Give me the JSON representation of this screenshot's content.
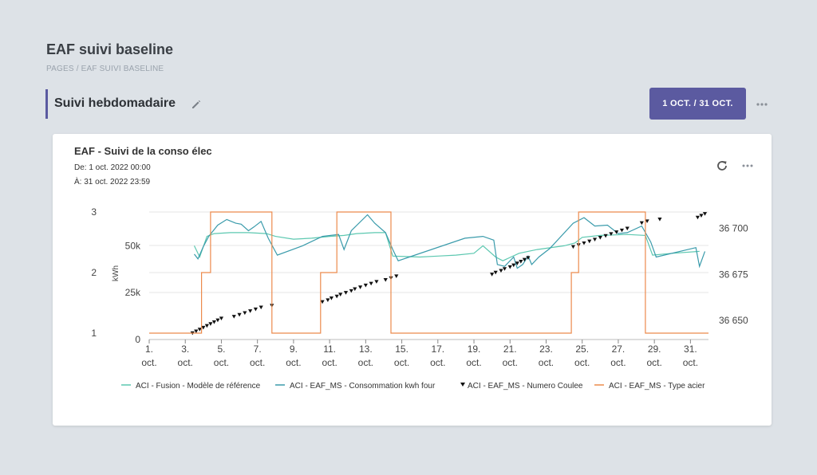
{
  "page": {
    "title": "EAF suivi baseline",
    "breadcrumb": "PAGES / EAF SUIVI BASELINE"
  },
  "section": {
    "title": "Suivi hebdomadaire",
    "date_range_button": "1 OCT. / 31 OCT."
  },
  "card": {
    "title": "EAF - Suivi de la conso élec",
    "from": "De: 1 oct. 2022 00:00",
    "to": "À: 31 oct. 2022 23:59"
  },
  "stray_mark": "'",
  "icons": {
    "edit": "pencil-icon",
    "more": "more-horizontal-icon",
    "refresh": "refresh-icon"
  },
  "colors": {
    "accent": "#5b5aa0",
    "fusion": "#5cc8b0",
    "conso": "#3a9bab",
    "coulee": "#111111",
    "type_acier": "#ec8a4c"
  },
  "chart_data": {
    "type": "line",
    "x_range": [
      1,
      32
    ],
    "x_ticks": [
      {
        "day": 1,
        "label": "1."
      },
      {
        "day": 3,
        "label": "3."
      },
      {
        "day": 5,
        "label": "5."
      },
      {
        "day": 7,
        "label": "7."
      },
      {
        "day": 9,
        "label": "9."
      },
      {
        "day": 11,
        "label": "11."
      },
      {
        "day": 13,
        "label": "13."
      },
      {
        "day": 15,
        "label": "15."
      },
      {
        "day": 17,
        "label": "17."
      },
      {
        "day": 19,
        "label": "19."
      },
      {
        "day": 21,
        "label": "21."
      },
      {
        "day": 23,
        "label": "23."
      },
      {
        "day": 25,
        "label": "25."
      },
      {
        "day": 27,
        "label": "27."
      },
      {
        "day": 29,
        "label": "29."
      },
      {
        "day": 31,
        "label": "31."
      }
    ],
    "x_tick_suffix": "oct.",
    "axes": {
      "type_axis": {
        "ticks": [
          1,
          2,
          3
        ],
        "range": [
          1,
          3
        ]
      },
      "kwh_axis": {
        "label": "kWh",
        "ticks": [
          {
            "value": 0,
            "label": "0"
          },
          {
            "value": 25000,
            "label": "25k"
          },
          {
            "value": 50000,
            "label": "50k"
          }
        ],
        "range": [
          0,
          68000
        ]
      },
      "coulee_axis": {
        "ticks": [
          {
            "value": 36650,
            "label": "36 650"
          },
          {
            "value": 36675,
            "label": "36 675"
          },
          {
            "value": 36700,
            "label": "36 700"
          }
        ],
        "range": [
          36643,
          36709
        ]
      }
    },
    "grid": true,
    "legend_position": "bottom",
    "series": [
      {
        "name": "ACI - Fusion - Modèle de référence",
        "axis": "kwh",
        "points": [
          [
            3.5,
            50000
          ],
          [
            3.8,
            44000
          ],
          [
            4.2,
            55000
          ],
          [
            4.6,
            56500
          ],
          [
            5.5,
            57000
          ],
          [
            6.5,
            57000
          ],
          [
            7.5,
            56500
          ],
          [
            8,
            55000
          ],
          [
            9,
            53500
          ],
          [
            10,
            54000
          ],
          [
            11,
            55000
          ],
          [
            11.8,
            55500
          ],
          [
            12.5,
            56500
          ],
          [
            13.5,
            57000
          ],
          [
            14.1,
            57000
          ],
          [
            14.5,
            44500
          ],
          [
            16,
            44000
          ],
          [
            17,
            44500
          ],
          [
            18,
            45000
          ],
          [
            19,
            46000
          ],
          [
            19.5,
            50000
          ],
          [
            20.2,
            44000
          ],
          [
            20.6,
            42000
          ],
          [
            21.5,
            46000
          ],
          [
            22.5,
            48000
          ],
          [
            24,
            50000
          ],
          [
            24.6,
            51500
          ],
          [
            25,
            54500
          ],
          [
            26,
            55500
          ],
          [
            27.5,
            56000
          ],
          [
            28.5,
            55500
          ],
          [
            28.9,
            45000
          ],
          [
            30,
            46000
          ],
          [
            31.5,
            47000
          ]
        ]
      },
      {
        "name": "ACI - EAF_MS - Consommation kwh four",
        "axis": "kwh",
        "points": [
          [
            3.5,
            45500
          ],
          [
            3.7,
            43000
          ],
          [
            4,
            49500
          ],
          [
            4.3,
            55000
          ],
          [
            4.8,
            61000
          ],
          [
            5.3,
            64000
          ],
          [
            5.8,
            62000
          ],
          [
            6.1,
            61500
          ],
          [
            6.5,
            58000
          ],
          [
            6.8,
            60000
          ],
          [
            7.2,
            63000
          ],
          [
            7.6,
            54000
          ],
          [
            8.1,
            45000
          ],
          [
            9.5,
            50000
          ],
          [
            10.6,
            55000
          ],
          [
            11.5,
            56000
          ],
          [
            11.8,
            48000
          ],
          [
            12.2,
            58000
          ],
          [
            13.1,
            66500
          ],
          [
            13.5,
            62000
          ],
          [
            14.1,
            57000
          ],
          [
            14.5,
            48000
          ],
          [
            14.8,
            42000
          ],
          [
            18.5,
            54000
          ],
          [
            19.5,
            55000
          ],
          [
            20.1,
            53000
          ],
          [
            20.3,
            40000
          ],
          [
            20.7,
            39000
          ],
          [
            21.2,
            44000
          ],
          [
            21.4,
            38000
          ],
          [
            21.7,
            40000
          ],
          [
            22,
            44500
          ],
          [
            22.2,
            40000
          ],
          [
            22.6,
            44000
          ],
          [
            23.2,
            48500
          ],
          [
            24.5,
            62000
          ],
          [
            25.1,
            65000
          ],
          [
            25.7,
            60500
          ],
          [
            26.4,
            61000
          ],
          [
            27,
            56500
          ],
          [
            27.5,
            57000
          ],
          [
            28.3,
            60500
          ],
          [
            28.8,
            52000
          ],
          [
            29.1,
            44000
          ],
          [
            31.3,
            49000
          ],
          [
            31.5,
            39000
          ],
          [
            31.8,
            47000
          ]
        ]
      },
      {
        "name": "ACI - EAF_MS - Numero Coulee",
        "axis": "coulee",
        "markers": "triangle-down",
        "points": [
          [
            3.4,
            36643
          ],
          [
            3.6,
            36644
          ],
          [
            3.8,
            36645
          ],
          [
            4,
            36646
          ],
          [
            4.2,
            36647
          ],
          [
            4.4,
            36648
          ],
          [
            4.6,
            36649
          ],
          [
            4.8,
            36650
          ],
          [
            5,
            36651
          ],
          [
            5.7,
            36652
          ],
          [
            6,
            36653
          ],
          [
            6.3,
            36654
          ],
          [
            6.6,
            36655
          ],
          [
            6.9,
            36656
          ],
          [
            7.2,
            36657
          ],
          [
            7.8,
            36658
          ],
          [
            10.6,
            36660
          ],
          [
            10.9,
            36661
          ],
          [
            11.1,
            36662
          ],
          [
            11.4,
            36663
          ],
          [
            11.6,
            36664
          ],
          [
            11.9,
            36665
          ],
          [
            12.2,
            36666
          ],
          [
            12.4,
            36667
          ],
          [
            12.7,
            36668
          ],
          [
            13,
            36669
          ],
          [
            13.3,
            36670
          ],
          [
            13.6,
            36671
          ],
          [
            14.1,
            36672
          ],
          [
            14.4,
            36673
          ],
          [
            14.7,
            36674
          ],
          [
            20,
            36675
          ],
          [
            20.2,
            36676
          ],
          [
            20.5,
            36677
          ],
          [
            20.7,
            36678
          ],
          [
            21,
            36679
          ],
          [
            21.2,
            36680
          ],
          [
            21.4,
            36681
          ],
          [
            21.6,
            36682
          ],
          [
            21.8,
            36683
          ],
          [
            22,
            36684
          ],
          [
            24.5,
            36690
          ],
          [
            24.8,
            36691
          ],
          [
            25.1,
            36692
          ],
          [
            25.4,
            36693
          ],
          [
            25.7,
            36694
          ],
          [
            26,
            36695
          ],
          [
            26.3,
            36696
          ],
          [
            26.6,
            36697
          ],
          [
            26.9,
            36698
          ],
          [
            27.2,
            36699
          ],
          [
            27.5,
            36700
          ],
          [
            28.3,
            36703
          ],
          [
            28.6,
            36704
          ],
          [
            29.3,
            36705
          ],
          [
            31.4,
            36706
          ],
          [
            31.6,
            36707
          ],
          [
            31.8,
            36708
          ]
        ]
      },
      {
        "name": "ACI - EAF_MS - Type acier",
        "axis": "type",
        "points": [
          [
            1,
            1
          ],
          [
            3.9,
            1
          ],
          [
            3.9,
            2
          ],
          [
            4.4,
            2
          ],
          [
            4.4,
            3
          ],
          [
            7.8,
            3
          ],
          [
            7.8,
            1
          ],
          [
            10.5,
            1
          ],
          [
            10.5,
            2
          ],
          [
            11.4,
            2
          ],
          [
            11.4,
            3
          ],
          [
            14.4,
            3
          ],
          [
            14.4,
            1
          ],
          [
            24.4,
            1
          ],
          [
            24.4,
            2
          ],
          [
            24.8,
            2
          ],
          [
            24.8,
            3
          ],
          [
            28.5,
            3
          ],
          [
            28.5,
            1
          ],
          [
            32,
            1
          ]
        ]
      }
    ]
  }
}
